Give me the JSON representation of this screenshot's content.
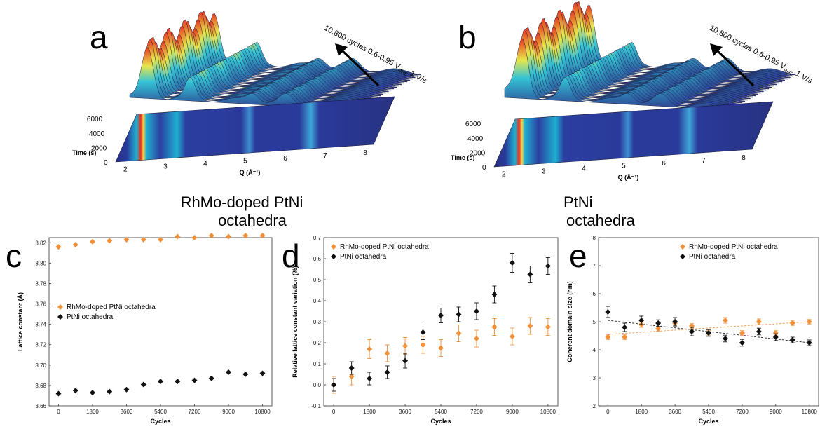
{
  "panels_top": [
    {
      "letter": "a",
      "heading_line1": "RhMo-doped PtNi",
      "heading_line2": "octahedra",
      "arrow_text": "10,800 cycles 0.6-0.95 V",
      "arrow_sub": "RHE",
      "arrow_tail": " 1 V/s",
      "time_label": "Time (s)",
      "q_label": "Q (Å⁻¹)",
      "time_ticks": [
        "0",
        "2000",
        "4000",
        "6000"
      ],
      "q_ticks": [
        "2",
        "3",
        "4",
        "5",
        "6",
        "7",
        "8"
      ]
    },
    {
      "letter": "b",
      "heading_line1": "PtNi",
      "heading_line2": "octahedra",
      "arrow_text": "10,800 cycles 0.6-0.95 V",
      "arrow_sub": "RHE",
      "arrow_tail": " 1 V/s",
      "time_label": "Time (s)",
      "q_label": "Q (Å⁻¹)",
      "time_ticks": [
        "0",
        "2000",
        "4000",
        "6000"
      ],
      "q_ticks": [
        "2",
        "3",
        "4",
        "5",
        "6",
        "7",
        "8"
      ]
    }
  ],
  "colors": {
    "orange": "#f0913a",
    "black": "#111111",
    "surface_low": "#2b3a8f",
    "surface_mid": "#35c4d6",
    "surface_high": "#e8321e"
  },
  "chart_data": [
    {
      "id": "c",
      "letter": "c",
      "type": "scatter",
      "xlabel": "Cycles",
      "ylabel": "Lattice constant (Å)",
      "xlim": [
        -500,
        11300
      ],
      "ylim": [
        3.66,
        3.825
      ],
      "xticks": [
        0,
        1800,
        3600,
        5400,
        7200,
        9000,
        10800
      ],
      "yticks": [
        3.66,
        3.68,
        3.7,
        3.72,
        3.74,
        3.76,
        3.78,
        3.8,
        3.82
      ],
      "ytick_labels": [
        "3.66",
        "3.68",
        "3.70",
        "3.72",
        "3.74",
        "3.76",
        "3.78",
        "3.80",
        "3.82"
      ],
      "legend_position": "middle-left",
      "series": [
        {
          "name": "RhMo-doped PtNi octahedra",
          "color": "#f0913a",
          "x": [
            0,
            900,
            1800,
            2700,
            3600,
            4500,
            5400,
            6300,
            7200,
            8100,
            9000,
            9900,
            10800
          ],
          "y": [
            3.816,
            3.818,
            3.821,
            3.822,
            3.823,
            3.823,
            3.823,
            3.826,
            3.825,
            3.827,
            3.826,
            3.827,
            3.827
          ]
        },
        {
          "name": "PtNi octahedra",
          "color": "#111111",
          "x": [
            0,
            900,
            1800,
            2700,
            3600,
            4500,
            5400,
            6300,
            7200,
            8100,
            9000,
            9900,
            10800
          ],
          "y": [
            3.672,
            3.675,
            3.673,
            3.674,
            3.676,
            3.681,
            3.684,
            3.684,
            3.685,
            3.687,
            3.693,
            3.691,
            3.692
          ]
        }
      ]
    },
    {
      "id": "d",
      "letter": "d",
      "type": "scatter",
      "xlabel": "Cycles",
      "ylabel": "Relative lattice constant variation (%)",
      "xlim": [
        -500,
        11300
      ],
      "ylim": [
        -0.1,
        0.7
      ],
      "xticks": [
        0,
        1800,
        3600,
        5400,
        7200,
        9000,
        10800
      ],
      "yticks": [
        -0.1,
        0,
        0.1,
        0.2,
        0.3,
        0.4,
        0.5,
        0.6,
        0.7
      ],
      "ytick_labels": [
        "-0.1",
        "0.0",
        "0.1",
        "0.2",
        "0.3",
        "0.4",
        "0.5",
        "0.6",
        "0.7"
      ],
      "legend_position": "top-left",
      "series": [
        {
          "name": "RhMo-doped PtNi octahedra",
          "color": "#f0913a",
          "x": [
            0,
            900,
            1800,
            2700,
            3600,
            4500,
            5400,
            6300,
            7200,
            8100,
            9000,
            9900,
            10800
          ],
          "y": [
            0.0,
            0.04,
            0.17,
            0.15,
            0.185,
            0.19,
            0.175,
            0.245,
            0.22,
            0.275,
            0.23,
            0.28,
            0.275
          ],
          "err": [
            0.04,
            0.04,
            0.045,
            0.04,
            0.04,
            0.04,
            0.04,
            0.04,
            0.04,
            0.04,
            0.04,
            0.04,
            0.04
          ]
        },
        {
          "name": "PtNi octahedra",
          "color": "#111111",
          "x": [
            0,
            900,
            1800,
            2700,
            3600,
            4500,
            5400,
            6300,
            7200,
            8100,
            9000,
            9900,
            10800
          ],
          "y": [
            0.0,
            0.08,
            0.03,
            0.06,
            0.115,
            0.25,
            0.33,
            0.335,
            0.35,
            0.43,
            0.58,
            0.525,
            0.565
          ],
          "err": [
            0.03,
            0.03,
            0.03,
            0.03,
            0.035,
            0.035,
            0.035,
            0.035,
            0.04,
            0.04,
            0.045,
            0.04,
            0.04
          ]
        }
      ]
    },
    {
      "id": "e",
      "letter": "e",
      "type": "scatter",
      "xlabel": "Cycles",
      "ylabel": "Coherent domain size (nm)",
      "xlim": [
        -500,
        11300
      ],
      "ylim": [
        2,
        8
      ],
      "xticks": [
        0,
        1800,
        3600,
        5400,
        7200,
        9000,
        10800
      ],
      "yticks": [
        2,
        3,
        4,
        5,
        6,
        7,
        8
      ],
      "ytick_labels": [
        "2",
        "3",
        "4",
        "5",
        "6",
        "7",
        "8"
      ],
      "legend_position": "top-right",
      "series": [
        {
          "name": "RhMo-doped PtNi octahedra",
          "color": "#f0913a",
          "x": [
            0,
            900,
            1800,
            2700,
            3600,
            4500,
            5400,
            6300,
            7200,
            8100,
            9000,
            9900,
            10800
          ],
          "y": [
            4.45,
            4.45,
            4.9,
            4.75,
            4.95,
            4.85,
            4.6,
            5.05,
            4.6,
            5.0,
            4.6,
            4.95,
            5.0
          ],
          "err": [
            0.08,
            0.08,
            0.1,
            0.08,
            0.1,
            0.08,
            0.08,
            0.1,
            0.08,
            0.1,
            0.08,
            0.08,
            0.08
          ],
          "trend": [
            4.55,
            5.0
          ]
        },
        {
          "name": "PtNi octahedra",
          "color": "#111111",
          "x": [
            0,
            900,
            1800,
            2700,
            3600,
            4500,
            5400,
            6300,
            7200,
            8100,
            9000,
            9900,
            10800
          ],
          "y": [
            5.35,
            4.8,
            5.05,
            4.95,
            5.0,
            4.65,
            4.6,
            4.4,
            4.25,
            4.65,
            4.45,
            4.35,
            4.25
          ],
          "err": [
            0.2,
            0.15,
            0.15,
            0.12,
            0.15,
            0.15,
            0.12,
            0.12,
            0.12,
            0.12,
            0.12,
            0.1,
            0.1
          ],
          "trend": [
            5.05,
            4.25
          ]
        }
      ]
    }
  ]
}
